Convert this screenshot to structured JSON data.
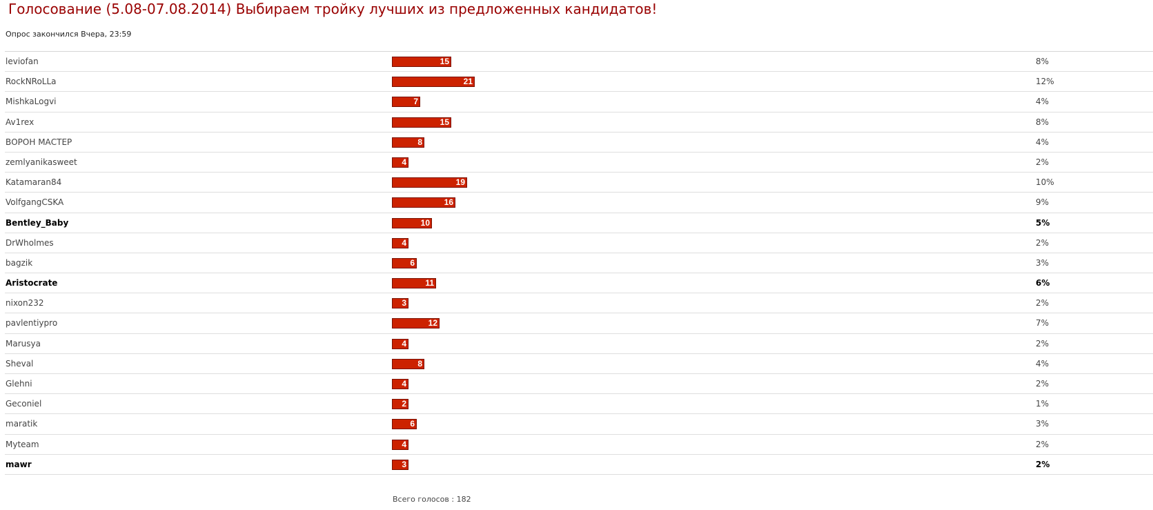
{
  "poll": {
    "title": "Голосование (5.08-07.08.2014) Выбираем тройку лучших из предложенных кандидатов!",
    "status": "Опрос закончился Вчера, 23:59",
    "total_label": "Всего голосов : 182",
    "bar_color": "#cc2200",
    "title_color": "#990000",
    "max_votes": 21,
    "options": [
      {
        "name": "leviofan",
        "votes": "15",
        "percent": "8%",
        "bold": false
      },
      {
        "name": "RockNRoLLa",
        "votes": "21",
        "percent": "12%",
        "bold": false
      },
      {
        "name": "MishkaLogvi",
        "votes": "7",
        "percent": "4%",
        "bold": false
      },
      {
        "name": "Av1rex",
        "votes": "15",
        "percent": "8%",
        "bold": false
      },
      {
        "name": "ВОРОН МАСТЕР",
        "votes": "8",
        "percent": "4%",
        "bold": false
      },
      {
        "name": "zemlyanikasweet",
        "votes": "4",
        "percent": "2%",
        "bold": false
      },
      {
        "name": "Katamaran84",
        "votes": "19",
        "percent": "10%",
        "bold": false
      },
      {
        "name": "VolfgangCSKA",
        "votes": "16",
        "percent": "9%",
        "bold": false
      },
      {
        "name": "Bentley_Baby",
        "votes": "10",
        "percent": "5%",
        "bold": true
      },
      {
        "name": "DrWholmes",
        "votes": "4",
        "percent": "2%",
        "bold": false
      },
      {
        "name": "bagzik",
        "votes": "6",
        "percent": "3%",
        "bold": false
      },
      {
        "name": "Aristocrate",
        "votes": "11",
        "percent": "6%",
        "bold": true
      },
      {
        "name": "nixon232",
        "votes": "3",
        "percent": "2%",
        "bold": false
      },
      {
        "name": "pavlentiypro",
        "votes": "12",
        "percent": "7%",
        "bold": false
      },
      {
        "name": "Marusya",
        "votes": "4",
        "percent": "2%",
        "bold": false
      },
      {
        "name": "Sheval",
        "votes": "8",
        "percent": "4%",
        "bold": false
      },
      {
        "name": "Glehni",
        "votes": "4",
        "percent": "2%",
        "bold": false
      },
      {
        "name": "Geconiel",
        "votes": "2",
        "percent": "1%",
        "bold": false
      },
      {
        "name": "maratik",
        "votes": "6",
        "percent": "3%",
        "bold": false
      },
      {
        "name": "Myteam",
        "votes": "4",
        "percent": "2%",
        "bold": false
      },
      {
        "name": "mawr",
        "votes": "3",
        "percent": "2%",
        "bold": true
      }
    ]
  }
}
